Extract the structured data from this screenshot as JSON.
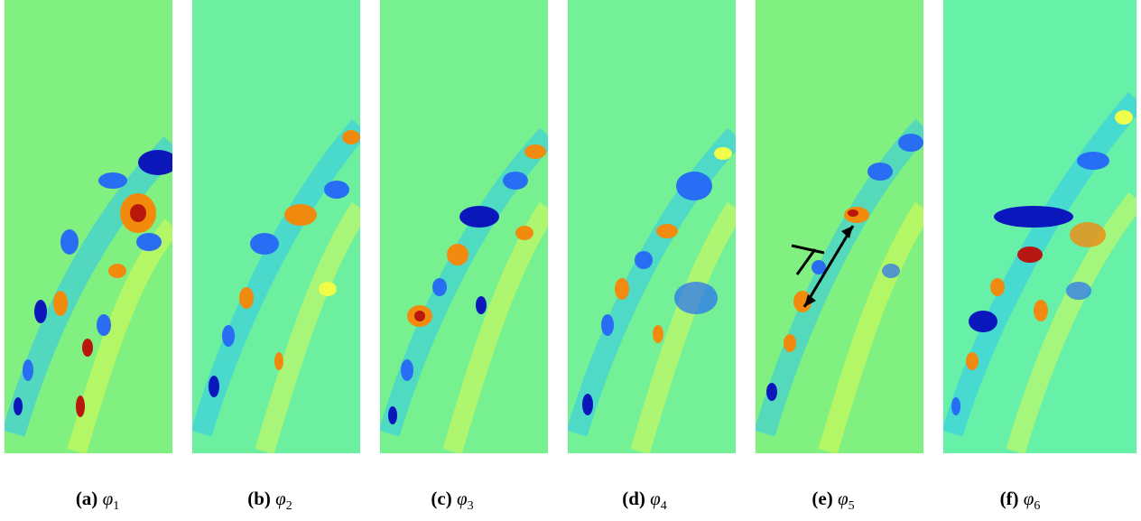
{
  "figure": {
    "panels": [
      {
        "letter": "(a)",
        "symbol": "φ",
        "index": "1",
        "background": "#80f080"
      },
      {
        "letter": "(b)",
        "symbol": "φ",
        "index": "2",
        "background": "#6cf0a0"
      },
      {
        "letter": "(c)",
        "symbol": "φ",
        "index": "3",
        "background": "#77f090"
      },
      {
        "letter": "(d)",
        "symbol": "φ",
        "index": "4",
        "background": "#74f096"
      },
      {
        "letter": "(e)",
        "symbol": "φ",
        "index": "5",
        "background": "#80f080"
      },
      {
        "letter": "(f)",
        "symbol": "φ",
        "index": "6",
        "background": "#66f0a8"
      }
    ],
    "colormap": [
      "#0000c0",
      "#2060ff",
      "#20c0ff",
      "#ffff40",
      "#ff8000",
      "#c00000"
    ]
  }
}
